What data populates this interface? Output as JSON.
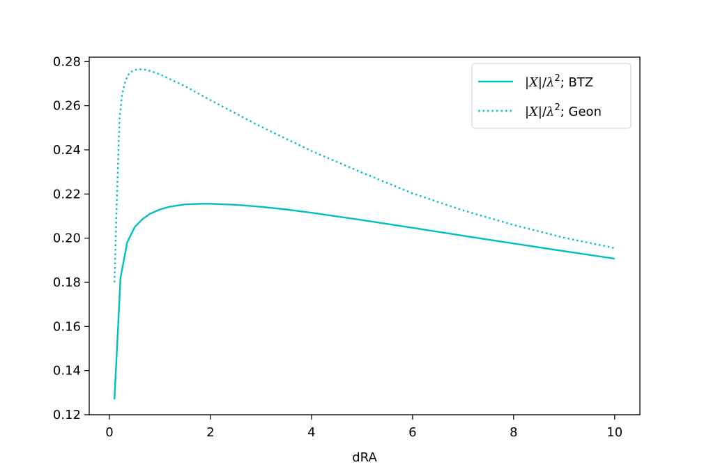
{
  "chart_data": {
    "type": "line",
    "xlabel": "dRA",
    "ylabel": "",
    "title": "",
    "xlim": [
      -0.4,
      10.5
    ],
    "ylim": [
      0.12,
      0.282
    ],
    "xticks": [
      0,
      2,
      4,
      6,
      8,
      10
    ],
    "yticks": [
      0.12,
      0.14,
      0.16,
      0.18,
      0.2,
      0.22,
      0.24,
      0.26,
      0.28
    ],
    "xtick_labels": [
      "0",
      "2",
      "4",
      "6",
      "8",
      "10"
    ],
    "ytick_labels": [
      "0.12",
      "0.14",
      "0.16",
      "0.18",
      "0.20",
      "0.22",
      "0.24",
      "0.26",
      "0.28"
    ],
    "grid": false,
    "legend_position": "top-right",
    "series": [
      {
        "name": "|X|/λ²; BTZ",
        "legend_prefix": "|X|/λ",
        "legend_sup": "2",
        "legend_suffix": "; BTZ",
        "color": "#00bfbf",
        "style": "solid",
        "x": [
          0.1,
          0.22,
          0.35,
          0.5,
          0.65,
          0.8,
          1.0,
          1.2,
          1.5,
          1.8,
          2.0,
          2.5,
          3.0,
          3.5,
          4.0,
          5.0,
          6.0,
          7.0,
          8.0,
          9.0,
          10.0
        ],
        "y": [
          0.127,
          0.182,
          0.198,
          0.205,
          0.2085,
          0.211,
          0.213,
          0.2143,
          0.2153,
          0.2156,
          0.2156,
          0.2151,
          0.2142,
          0.213,
          0.2115,
          0.2082,
          0.2047,
          0.2011,
          0.1976,
          0.1941,
          0.1907
        ]
      },
      {
        "name": "|X|/λ²; Geon",
        "legend_prefix": "|X|/λ",
        "legend_sup": "2",
        "legend_suffix": "; Geon",
        "color": "#00bfbf",
        "style": "dotted",
        "x": [
          0.1,
          0.15,
          0.2,
          0.25,
          0.3,
          0.35,
          0.4,
          0.5,
          0.6,
          0.7,
          0.8,
          1.0,
          1.5,
          2.0,
          2.5,
          3.0,
          3.5,
          4.0,
          5.0,
          6.0,
          7.0,
          8.0,
          9.0,
          10.0
        ],
        "y": [
          0.18,
          0.22,
          0.254,
          0.265,
          0.27,
          0.273,
          0.275,
          0.2762,
          0.2765,
          0.2763,
          0.2758,
          0.2742,
          0.2688,
          0.2625,
          0.2565,
          0.2505,
          0.245,
          0.2395,
          0.2297,
          0.2203,
          0.2126,
          0.206,
          0.2002,
          0.1955
        ]
      }
    ]
  }
}
